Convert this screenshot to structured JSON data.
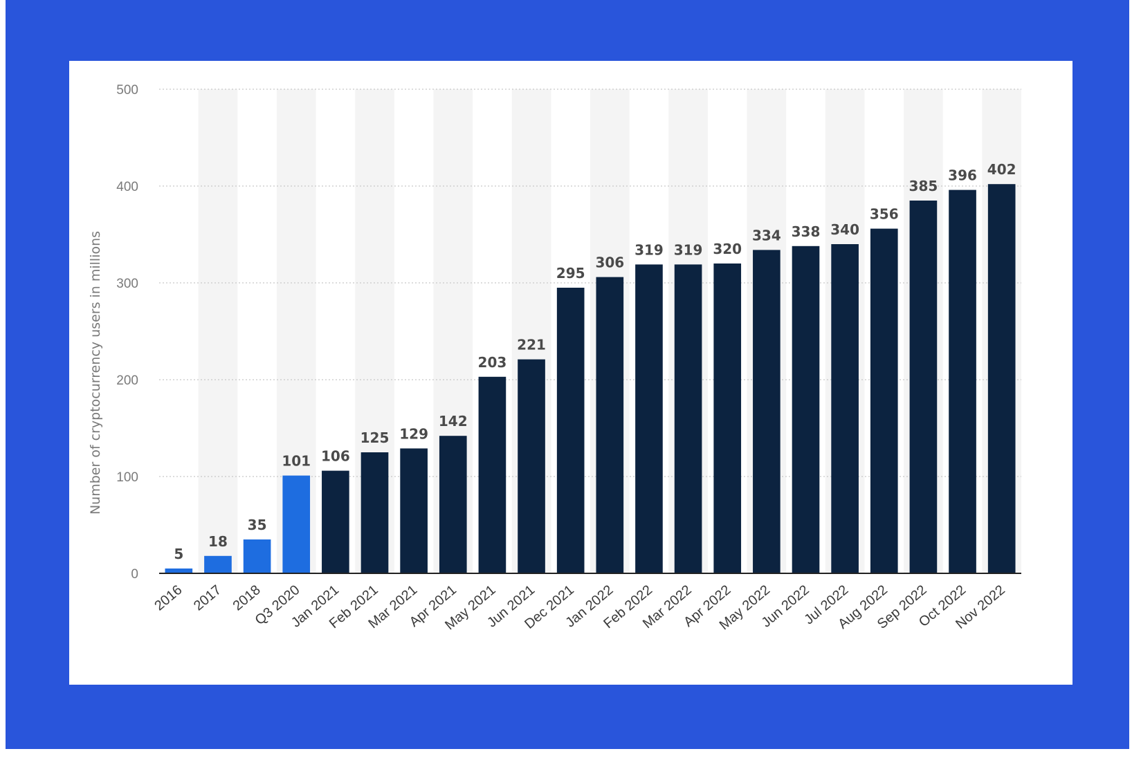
{
  "colors": {
    "frame": "#2955db",
    "card": "#ffffff",
    "bar_highlight": "#1e6de0",
    "bar_default": "#0c2340",
    "grid": "#c8c8c8",
    "band": "#f4f4f4"
  },
  "chart_data": {
    "type": "bar",
    "title": "",
    "xlabel": "",
    "ylabel": "Number of cryptocurrency users in millions",
    "ylim": [
      0,
      500
    ],
    "yticks": [
      0,
      100,
      200,
      300,
      400,
      500
    ],
    "grid": true,
    "data_labels": true,
    "categories": [
      "2016",
      "2017",
      "2018",
      "Q3 2020",
      "Jan 2021",
      "Feb 2021",
      "Mar 2021",
      "Apr 2021",
      "May 2021",
      "Jun 2021",
      "Dec 2021",
      "Jan 2022",
      "Feb 2022",
      "Mar 2022",
      "Apr 2022",
      "May 2022",
      "Jun 2022",
      "Jul 2022",
      "Aug 2022",
      "Sep 2022",
      "Oct 2022",
      "Nov 2022"
    ],
    "values": [
      5,
      18,
      35,
      101,
      106,
      125,
      129,
      142,
      203,
      221,
      295,
      306,
      319,
      319,
      320,
      334,
      338,
      340,
      356,
      385,
      396,
      402
    ],
    "bar_colors": [
      "#1e6de0",
      "#1e6de0",
      "#1e6de0",
      "#1e6de0",
      "#0c2340",
      "#0c2340",
      "#0c2340",
      "#0c2340",
      "#0c2340",
      "#0c2340",
      "#0c2340",
      "#0c2340",
      "#0c2340",
      "#0c2340",
      "#0c2340",
      "#0c2340",
      "#0c2340",
      "#0c2340",
      "#0c2340",
      "#0c2340",
      "#0c2340",
      "#0c2340"
    ]
  }
}
